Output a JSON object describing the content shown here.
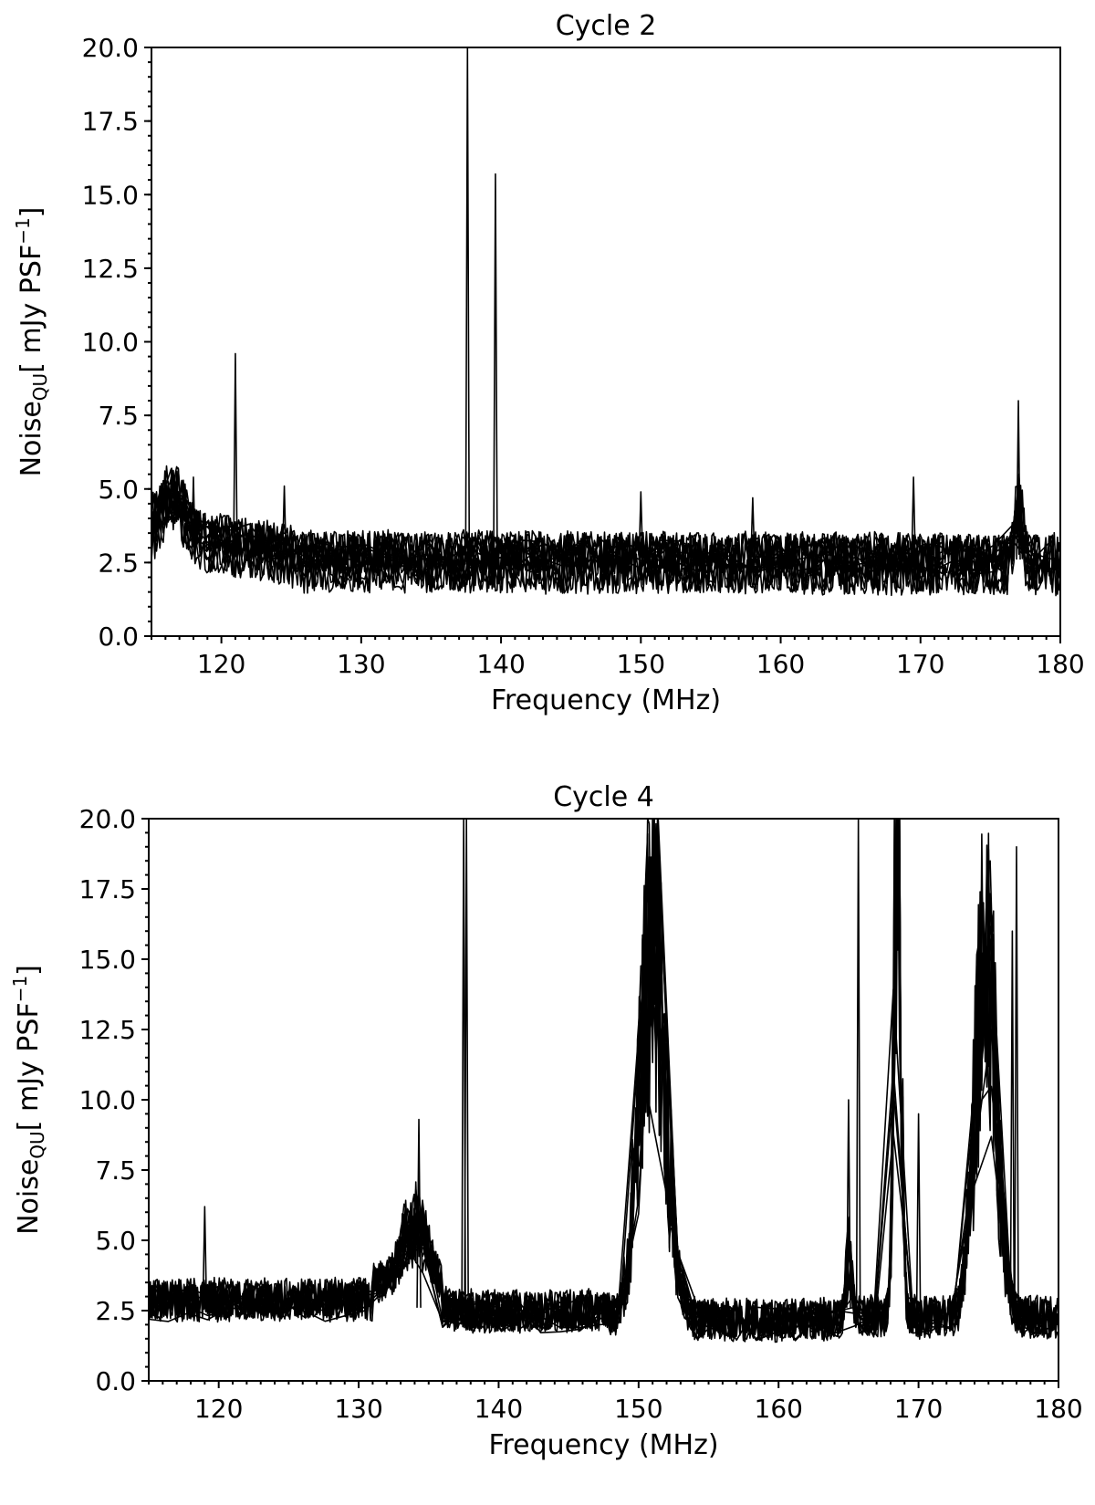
{
  "chart_data": [
    {
      "type": "line",
      "title": "Cycle 2",
      "xlabel": "Frequency (MHz)",
      "ylabel": {
        "main": "Noise",
        "sub": "QU",
        "unit": "[ mJy PSF",
        "exp": "−1",
        "close": "]"
      },
      "xlim": [
        115,
        180
      ],
      "ylim": [
        0,
        20
      ],
      "xticks": [
        "120",
        "130",
        "140",
        "150",
        "160",
        "170",
        "180"
      ],
      "yticks": [
        "0.0",
        "2.5",
        "5.0",
        "7.5",
        "10.0",
        "12.5",
        "15.0",
        "17.5",
        "20.0"
      ],
      "grid": false,
      "legend": "none",
      "series_count": 14,
      "baseline_range": [
        1.8,
        4.0
      ],
      "features": [
        {
          "x": 116.5,
          "y": 6.2,
          "label": "low-freq bump"
        },
        {
          "x": 121.0,
          "y": 9.6,
          "label": "spike"
        },
        {
          "x": 137.5,
          "y": 20.0,
          "label": "saturated spike"
        },
        {
          "x": 139.5,
          "y": 15.7,
          "label": "spike"
        },
        {
          "x": 150.0,
          "y": 4.9,
          "label": "spike"
        },
        {
          "x": 158.0,
          "y": 4.7,
          "label": "spike"
        },
        {
          "x": 169.5,
          "y": 5.4,
          "label": "spike"
        },
        {
          "x": 177.0,
          "y": 8.0,
          "label": "spike"
        }
      ]
    },
    {
      "type": "line",
      "title": "Cycle 4",
      "xlabel": "Frequency (MHz)",
      "ylabel": {
        "main": "Noise",
        "sub": "QU",
        "unit": "[ mJy PSF",
        "exp": "−1",
        "close": "]"
      },
      "xlim": [
        115,
        180
      ],
      "ylim": [
        0,
        20
      ],
      "xticks": [
        "120",
        "130",
        "140",
        "150",
        "160",
        "170",
        "180"
      ],
      "yticks": [
        "0.0",
        "2.5",
        "5.0",
        "7.5",
        "10.0",
        "12.5",
        "15.0",
        "17.5",
        "20.0"
      ],
      "grid": false,
      "legend": "none",
      "series_count": 14,
      "baseline_range": [
        1.5,
        4.5
      ],
      "features": [
        {
          "x": 119.0,
          "y": 6.2,
          "label": "spike"
        },
        {
          "x": 134.0,
          "y": 9.3,
          "label": "bump"
        },
        {
          "x": 137.5,
          "y": 20.0,
          "label": "saturated spike"
        },
        {
          "x": 151.0,
          "y": 20.0,
          "label": "broad RFI band"
        },
        {
          "x": 165.5,
          "y": 20.0,
          "label": "saturated spike"
        },
        {
          "x": 168.5,
          "y": 20.0,
          "label": "saturated band"
        },
        {
          "x": 175.0,
          "y": 20.0,
          "label": "broad RFI band"
        },
        {
          "x": 177.0,
          "y": 19.0,
          "label": "high noise"
        }
      ]
    }
  ]
}
